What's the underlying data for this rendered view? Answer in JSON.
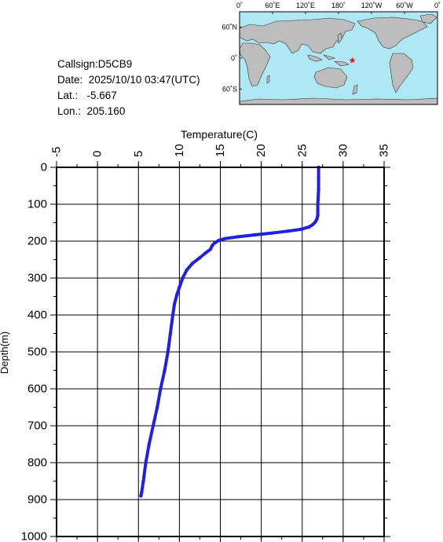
{
  "info": {
    "callsign": "Callsign:D5CB9",
    "date": "Date:  2025/10/10 03:47(UTC)",
    "lat": "Lat.:   -5.667",
    "lon": "Lon.:  205.160"
  },
  "map": {
    "lon_labels": [
      "0˚",
      "60˚E",
      "120˚E",
      "180˚",
      "120˚W",
      "60˚W",
      "0˚"
    ],
    "lat_labels": [
      "60˚N",
      "0˚",
      "60˚S"
    ],
    "ocean_color": "#aee8f5",
    "land_color": "#bdbdbd",
    "marker": {
      "lon": 205.16,
      "lat": -5.667,
      "color": "#ff0000",
      "icon": "star-icon"
    }
  },
  "chart_data": {
    "type": "line",
    "title": "",
    "xlabel": "Temperature(C)",
    "ylabel": "Depth(m)",
    "xlim": [
      -5,
      35
    ],
    "ylim": [
      0,
      1000
    ],
    "y_inverted": true,
    "x_axis_position": "top",
    "xticks": [
      "-5",
      "0",
      "5",
      "10",
      "15",
      "20",
      "25",
      "30",
      "35"
    ],
    "yticks": [
      "0",
      "100",
      "200",
      "300",
      "400",
      "500",
      "600",
      "700",
      "800",
      "900",
      "1000"
    ],
    "grid": true,
    "series": [
      {
        "color": "#1f1fe6",
        "points": [
          [
            27.0,
            0
          ],
          [
            27.0,
            30
          ],
          [
            27.0,
            60
          ],
          [
            26.9,
            100
          ],
          [
            26.9,
            130
          ],
          [
            26.8,
            140
          ],
          [
            26.6,
            148
          ],
          [
            26.3,
            155
          ],
          [
            25.8,
            162
          ],
          [
            24.8,
            168
          ],
          [
            23.2,
            173
          ],
          [
            21.3,
            178
          ],
          [
            19.2,
            183
          ],
          [
            17.2,
            188
          ],
          [
            15.6,
            193
          ],
          [
            14.8,
            198
          ],
          [
            14.3,
            205
          ],
          [
            14.0,
            212
          ],
          [
            13.8,
            222
          ],
          [
            13.2,
            232
          ],
          [
            12.5,
            245
          ],
          [
            11.6,
            260
          ],
          [
            10.9,
            278
          ],
          [
            10.4,
            300
          ],
          [
            10.0,
            325
          ],
          [
            9.7,
            345
          ],
          [
            9.4,
            370
          ],
          [
            9.2,
            400
          ],
          [
            8.9,
            450
          ],
          [
            8.6,
            500
          ],
          [
            8.2,
            550
          ],
          [
            7.7,
            600
          ],
          [
            7.3,
            650
          ],
          [
            6.8,
            700
          ],
          [
            6.3,
            750
          ],
          [
            5.9,
            800
          ],
          [
            5.6,
            850
          ],
          [
            5.4,
            880
          ],
          [
            5.3,
            890
          ]
        ]
      }
    ]
  }
}
